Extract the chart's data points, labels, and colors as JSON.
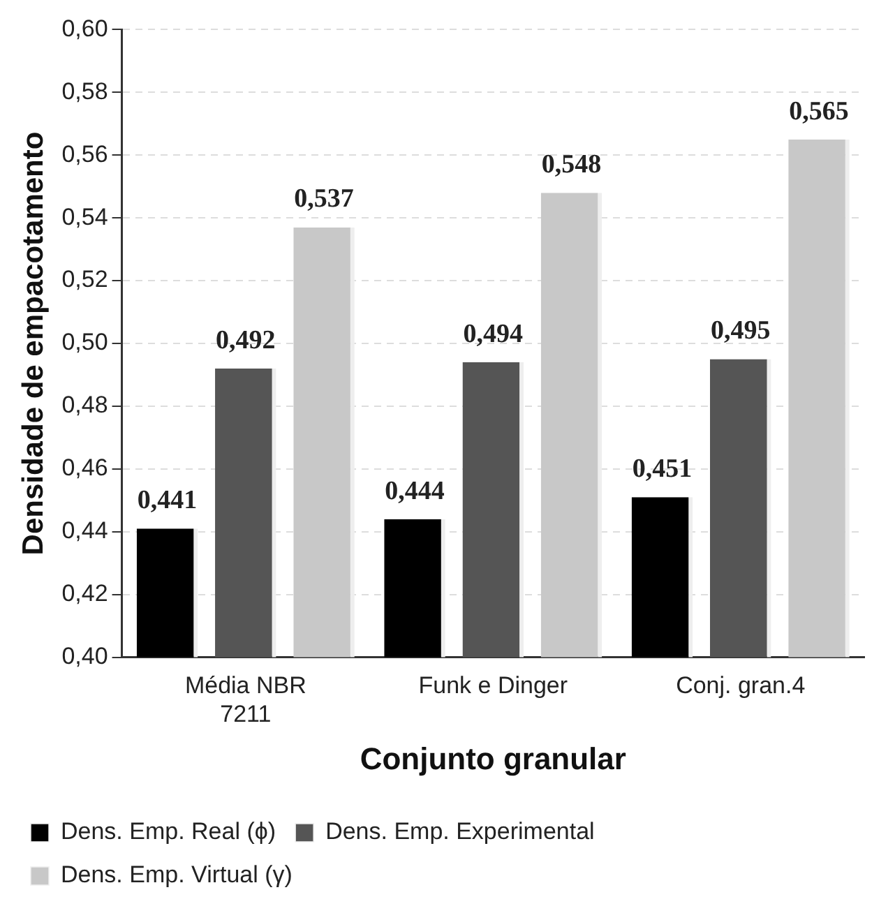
{
  "chart_data": {
    "type": "bar",
    "xlabel": "Conjunto granular",
    "ylabel": "Densidade de empacotamento",
    "categories": [
      "Média NBR 7211",
      "Funk e Dinger",
      "Conj. gran.4"
    ],
    "series": [
      {
        "name": "Dens. Emp. Real (ϕ)",
        "color": "#000000",
        "values": [
          0.441,
          0.444,
          0.451
        ],
        "value_labels": [
          "0,441",
          "0,444",
          "0,451"
        ]
      },
      {
        "name": "Dens. Emp. Experimental",
        "color": "#555555",
        "values": [
          0.492,
          0.494,
          0.495
        ],
        "value_labels": [
          "0,492",
          "0,494",
          "0,495"
        ]
      },
      {
        "name": "Dens. Emp. Virtual (γ)",
        "color": "#c8c8c8",
        "values": [
          0.537,
          0.548,
          0.565
        ],
        "value_labels": [
          "0,537",
          "0,548",
          "0,565"
        ]
      }
    ],
    "ylim": [
      0.4,
      0.6
    ],
    "yticks": [
      {
        "value": 0.4,
        "label": "0,40"
      },
      {
        "value": 0.42,
        "label": "0,42"
      },
      {
        "value": 0.44,
        "label": "0,44"
      },
      {
        "value": 0.46,
        "label": "0,46"
      },
      {
        "value": 0.48,
        "label": "0,48"
      },
      {
        "value": 0.5,
        "label": "0,50"
      },
      {
        "value": 0.52,
        "label": "0,52"
      },
      {
        "value": 0.54,
        "label": "0,54"
      },
      {
        "value": 0.56,
        "label": "0,56"
      },
      {
        "value": 0.58,
        "label": "0,58"
      },
      {
        "value": 0.6,
        "label": "0,60"
      }
    ],
    "grid": "y",
    "legend": "bottom"
  }
}
